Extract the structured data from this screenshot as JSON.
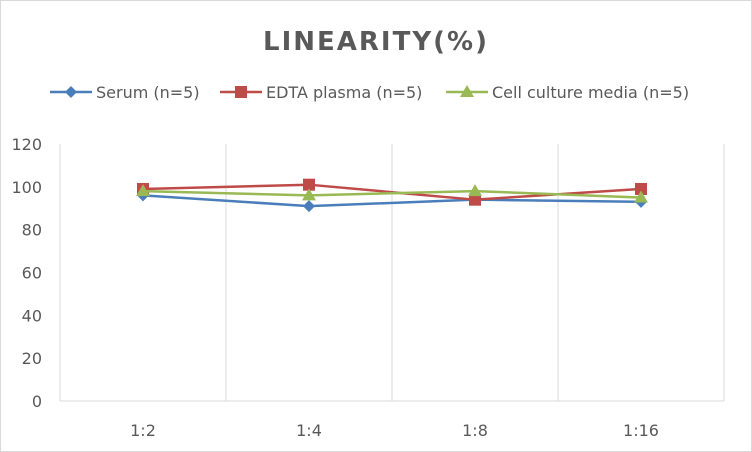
{
  "chart_data": {
    "type": "line",
    "title": "LINEARITY(%)",
    "categories": [
      "1:2",
      "1:4",
      "1:8",
      "1:16"
    ],
    "ylim": [
      0,
      120
    ],
    "yticks": [
      0,
      20,
      40,
      60,
      80,
      100,
      120
    ],
    "grid": "vertical",
    "legend": "top",
    "series": [
      {
        "name": "Serum (n=5)",
        "values": [
          96,
          91,
          94,
          93
        ],
        "color": "#4a7ebb",
        "marker": "diamond"
      },
      {
        "name": "EDTA plasma (n=5)",
        "values": [
          99,
          101,
          94,
          99
        ],
        "color": "#be4b48",
        "marker": "square"
      },
      {
        "name": "Cell culture media (n=5)",
        "values": [
          98,
          96,
          98,
          95
        ],
        "color": "#98b954",
        "marker": "triangle"
      }
    ]
  }
}
